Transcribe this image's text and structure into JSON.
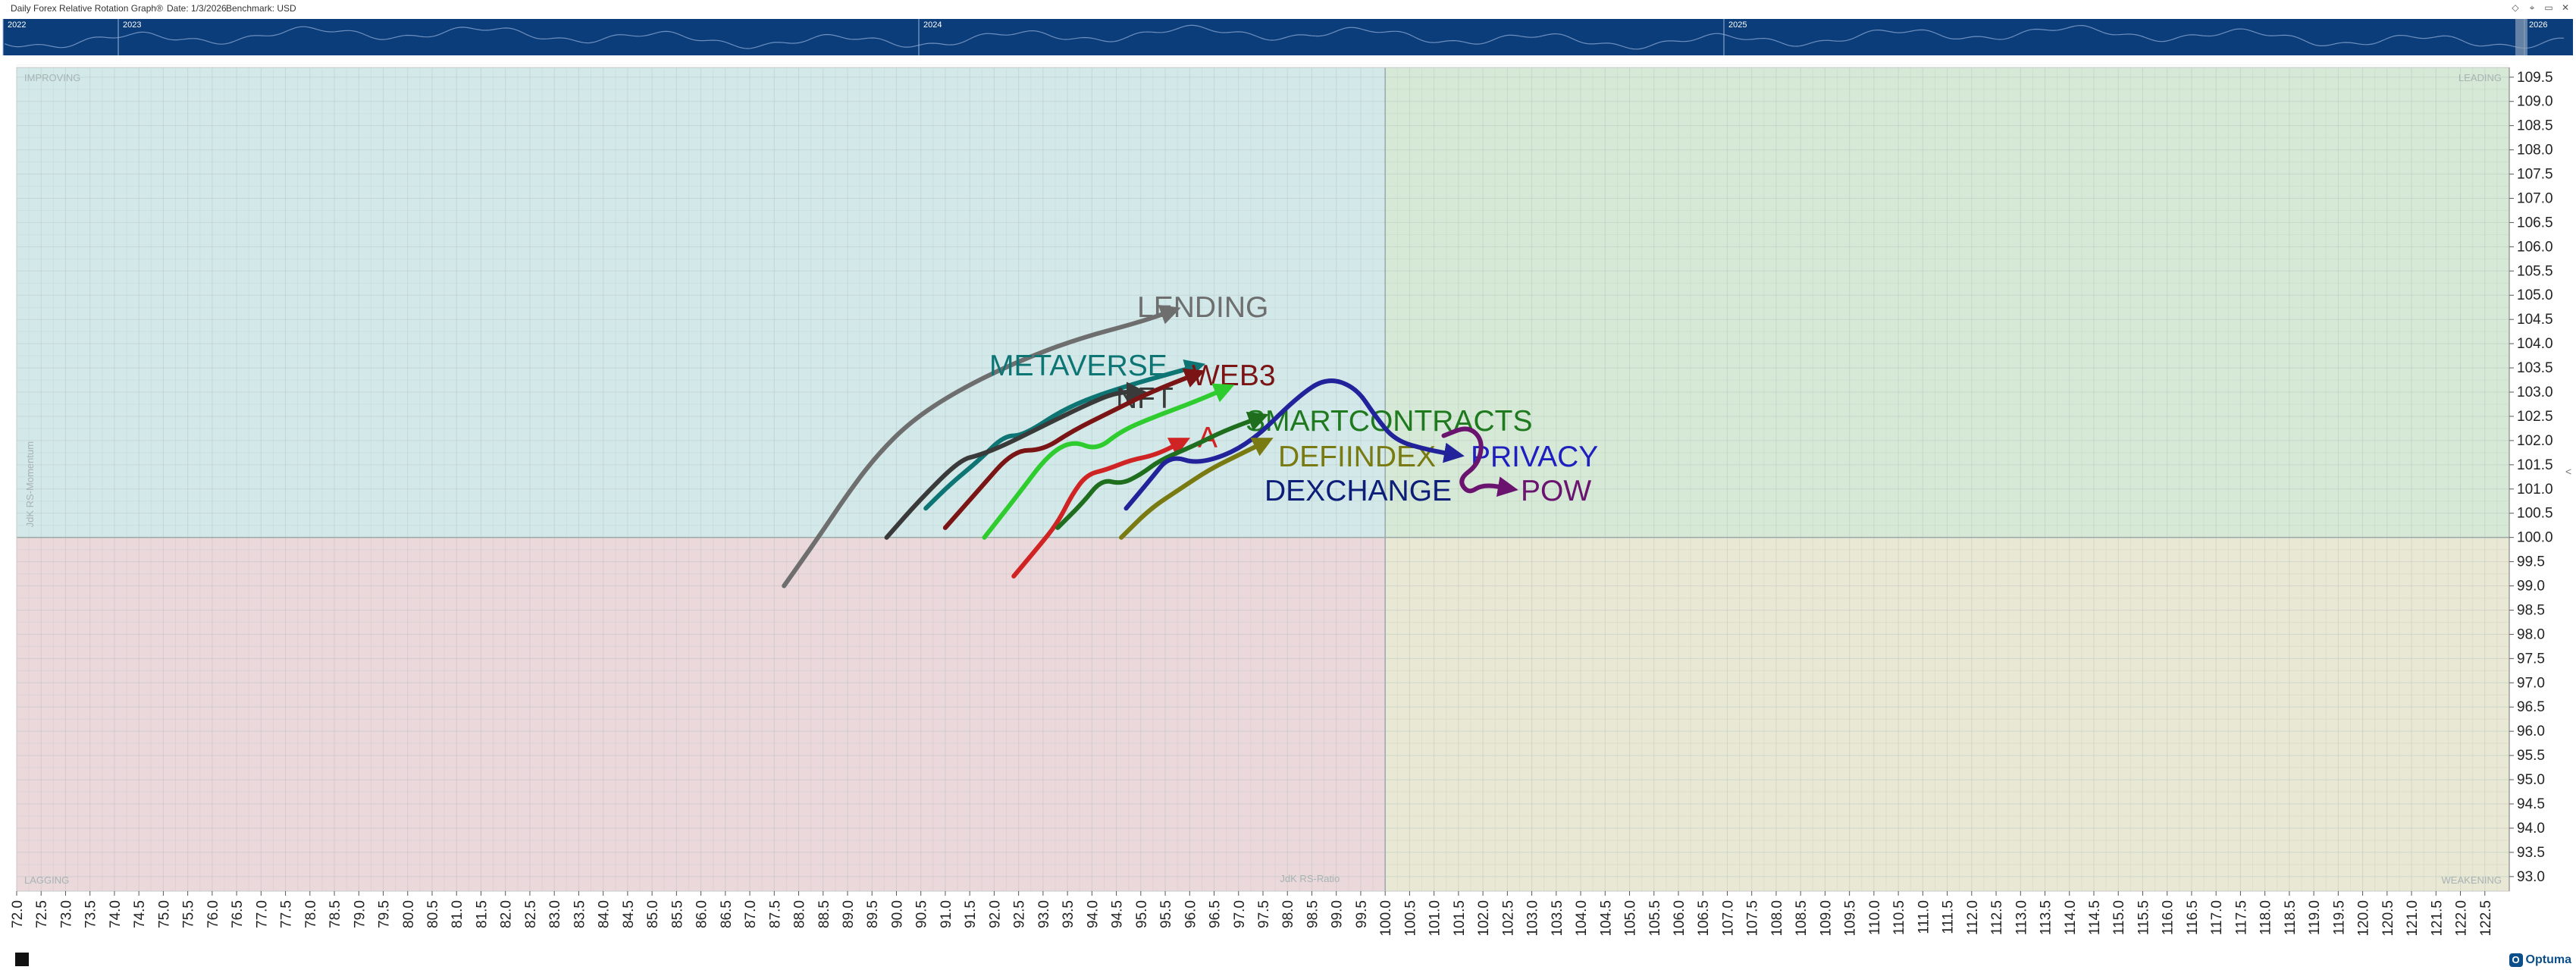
{
  "header": {
    "title": "Daily Forex Relative Rotation Graph®",
    "date_label": "Date: 1/3/2026",
    "benchmark_label": "Benchmark: USD"
  },
  "window_controls": [
    "◇",
    "⌖",
    "▭",
    "✕"
  ],
  "timeline": {
    "years": [
      "2022",
      "2023",
      "2024",
      "2025",
      "2026"
    ]
  },
  "quadrants": {
    "improving": "IMPROVING",
    "leading": "LEADING",
    "lagging": "LAGGING",
    "weakening": "WEAKENING"
  },
  "colors": {
    "improving": "#d3e9e9",
    "leading": "#d6e9d6",
    "lagging": "#ead8db",
    "weakening": "#e8e8d4",
    "timeline": "#0b3d7a"
  },
  "logo": {
    "text": "Optuma",
    "mark": "O"
  },
  "chart_data": {
    "type": "scatter",
    "title": "Daily Forex Relative Rotation Graph®",
    "xlabel": "JdK RS-Ratio",
    "ylabel": "JdK RS-Momentum",
    "xlim": [
      72.0,
      123.0
    ],
    "ylim": [
      92.7,
      109.7
    ],
    "center": [
      100.0,
      100.0
    ],
    "x_ticks": [
      72.0,
      72.5,
      73.0,
      73.5,
      74.0,
      74.5,
      75.0,
      75.5,
      76.0,
      76.5,
      77.0,
      77.5,
      78.0,
      78.5,
      79.0,
      79.5,
      80.0,
      80.5,
      81.0,
      81.5,
      82.0,
      82.5,
      83.0,
      83.5,
      84.0,
      84.5,
      85.0,
      85.5,
      86.0,
      86.5,
      87.0,
      87.5,
      88.0,
      88.5,
      89.0,
      89.5,
      90.0,
      90.5,
      91.0,
      91.5,
      92.0,
      92.5,
      93.0,
      93.5,
      94.0,
      94.5,
      95.0,
      95.5,
      96.0,
      96.5,
      97.0,
      97.5,
      98.0,
      98.5,
      99.0,
      99.5,
      100.0,
      100.5,
      101.0,
      101.5,
      102.0,
      102.5,
      103.0,
      103.5,
      104.0,
      104.5,
      105.0,
      105.5,
      106.0,
      106.5,
      107.0,
      107.5,
      108.0,
      108.5,
      109.0,
      109.5,
      110.0,
      110.5,
      111.0,
      111.5,
      112.0,
      112.5,
      113.0,
      113.5,
      114.0,
      114.5,
      115.0,
      115.5,
      116.0,
      116.5,
      117.0,
      117.5,
      118.0,
      118.5,
      119.0,
      119.5,
      120.0,
      120.5,
      121.0,
      121.5,
      122.0,
      122.5
    ],
    "y_ticks": [
      93.0,
      93.5,
      94.0,
      94.5,
      95.0,
      95.5,
      96.0,
      96.5,
      97.0,
      97.5,
      98.0,
      98.5,
      99.0,
      99.5,
      100.0,
      100.5,
      101.0,
      101.5,
      102.0,
      102.5,
      103.0,
      103.5,
      104.0,
      104.5,
      105.0,
      105.5,
      106.0,
      106.5,
      107.0,
      107.5,
      108.0,
      108.5,
      109.0,
      109.5
    ],
    "series": [
      {
        "name": "LENDING",
        "color": "#6e6e6e",
        "label_color": "#6e6e6e",
        "points": [
          [
            87.7,
            99.0
          ],
          [
            88.4,
            100.0
          ],
          [
            89.0,
            100.9
          ],
          [
            89.6,
            101.7
          ],
          [
            90.3,
            102.4
          ],
          [
            91.2,
            103.0
          ],
          [
            92.4,
            103.6
          ],
          [
            93.7,
            104.1
          ],
          [
            95.0,
            104.45
          ],
          [
            95.7,
            104.7
          ]
        ]
      },
      {
        "name": "METAVERSE",
        "color": "#0e7575",
        "label_color": "#0e7575",
        "points": [
          [
            90.6,
            100.6
          ],
          [
            91.1,
            101.1
          ],
          [
            91.7,
            101.6
          ],
          [
            92.2,
            102.1
          ],
          [
            92.6,
            102.1
          ],
          [
            93.5,
            102.7
          ],
          [
            94.6,
            103.1
          ],
          [
            96.2,
            103.55
          ]
        ]
      },
      {
        "name": "NFT",
        "color": "#3a3a3a",
        "label_color": "#3a3a3a",
        "points": [
          [
            89.8,
            100.0
          ],
          [
            90.5,
            100.8
          ],
          [
            91.3,
            101.6
          ],
          [
            91.7,
            101.7
          ],
          [
            92.2,
            101.9
          ],
          [
            93.0,
            102.3
          ],
          [
            93.8,
            102.7
          ],
          [
            94.5,
            103.0
          ],
          [
            95.0,
            103.0
          ]
        ]
      },
      {
        "name": "WEB3",
        "color": "#7b1414",
        "label_color": "#7b1414",
        "points": [
          [
            91.0,
            100.2
          ],
          [
            91.7,
            101.0
          ],
          [
            92.4,
            101.8
          ],
          [
            93.0,
            101.8
          ],
          [
            93.6,
            102.2
          ],
          [
            94.4,
            102.6
          ],
          [
            95.2,
            103.0
          ],
          [
            96.2,
            103.4
          ]
        ]
      },
      {
        "name": "SMARTCONTRACTS",
        "color": "#2ecc2e",
        "label_color": "#1f7a1f",
        "points": [
          [
            91.8,
            100.0
          ],
          [
            92.5,
            100.9
          ],
          [
            93.1,
            101.7
          ],
          [
            93.6,
            102.0
          ],
          [
            94.1,
            101.8
          ],
          [
            94.6,
            102.2
          ],
          [
            95.3,
            102.5
          ],
          [
            96.1,
            102.8
          ],
          [
            96.8,
            103.1
          ]
        ]
      },
      {
        "name": "A",
        "color": "#d02424",
        "label_color": "#d02424",
        "points": [
          [
            92.4,
            99.2
          ],
          [
            92.9,
            99.8
          ],
          [
            93.3,
            100.3
          ],
          [
            93.6,
            100.9
          ],
          [
            93.9,
            101.3
          ],
          [
            94.3,
            101.4
          ],
          [
            94.8,
            101.6
          ],
          [
            95.3,
            101.7
          ],
          [
            95.9,
            102.0
          ]
        ]
      },
      {
        "name": "DEFIINDEX",
        "color": "#1e6e1e",
        "label_color": "#7a7a12",
        "points": [
          [
            93.3,
            100.2
          ],
          [
            93.8,
            100.7
          ],
          [
            94.2,
            101.2
          ],
          [
            94.6,
            101.1
          ],
          [
            95.0,
            101.3
          ],
          [
            95.4,
            101.6
          ],
          [
            96.1,
            101.9
          ],
          [
            96.7,
            102.2
          ],
          [
            97.5,
            102.5
          ]
        ]
      },
      {
        "name": "PRIVACY",
        "color": "#22229a",
        "label_color": "#1f1fc0",
        "points": [
          [
            94.7,
            100.6
          ],
          [
            95.2,
            101.2
          ],
          [
            95.6,
            101.7
          ],
          [
            96.2,
            101.5
          ],
          [
            97.2,
            101.9
          ],
          [
            98.2,
            102.9
          ],
          [
            98.8,
            103.3
          ],
          [
            99.4,
            103.1
          ],
          [
            99.8,
            102.5
          ],
          [
            100.2,
            102.0
          ],
          [
            100.9,
            101.8
          ],
          [
            101.5,
            101.7
          ]
        ]
      },
      {
        "name": "DEXCHANGE",
        "color": "#7a7a12",
        "label_color": "#0d1e78",
        "points": [
          [
            94.6,
            100.0
          ],
          [
            95.2,
            100.6
          ],
          [
            95.8,
            101.0
          ],
          [
            96.4,
            101.4
          ],
          [
            97.0,
            101.7
          ],
          [
            97.6,
            102.0
          ]
        ]
      },
      {
        "name": "POW",
        "color": "#6a1470",
        "label_color": "#6a1470",
        "points": [
          [
            101.2,
            102.1
          ],
          [
            101.7,
            102.3
          ],
          [
            102.0,
            102.0
          ],
          [
            101.9,
            101.5
          ],
          [
            101.5,
            101.2
          ],
          [
            101.7,
            100.9
          ],
          [
            102.0,
            101.1
          ],
          [
            102.6,
            101.0
          ]
        ]
      }
    ]
  }
}
